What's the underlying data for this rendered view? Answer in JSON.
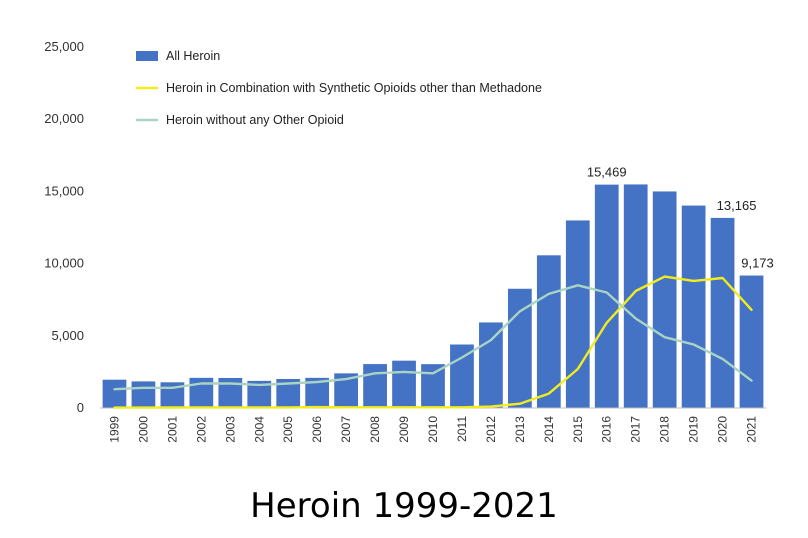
{
  "chart_data": {
    "type": "bar",
    "title": "Heroin 1999-2021",
    "categories": [
      "1999",
      "2000",
      "2001",
      "2002",
      "2003",
      "2004",
      "2005",
      "2006",
      "2007",
      "2008",
      "2009",
      "2010",
      "2011",
      "2012",
      "2013",
      "2014",
      "2015",
      "2016",
      "2017",
      "2018",
      "2019",
      "2020",
      "2021"
    ],
    "ylim": [
      0,
      25000
    ],
    "yticks": [
      "0",
      "5,000",
      "10,000",
      "15,000",
      "20,000",
      "25,000"
    ],
    "ytick_values": [
      0,
      5000,
      10000,
      15000,
      20000,
      25000
    ],
    "grid": false,
    "legend_position": "top-left",
    "series": [
      {
        "name": "All Heroin",
        "type": "bar",
        "color": "#4472C4",
        "values": [
          1960,
          1842,
          1779,
          2089,
          2080,
          1878,
          2009,
          2088,
          2399,
          3041,
          3278,
          3036,
          4397,
          5925,
          8257,
          10574,
          12989,
          15469,
          15482,
          14996,
          14019,
          13165,
          9173
        ]
      },
      {
        "name": "Heroin in Combination with Synthetic Opioids other than Methadone",
        "type": "line",
        "color": "#F2EC1D",
        "values": [
          30,
          30,
          35,
          40,
          40,
          40,
          45,
          60,
          50,
          50,
          50,
          50,
          50,
          100,
          300,
          1000,
          2700,
          5900,
          8100,
          9100,
          8800,
          9000,
          6800
        ]
      },
      {
        "name": "Heroin without any Other Opioid",
        "type": "line",
        "color": "#A9D4C4",
        "values": [
          1300,
          1400,
          1400,
          1700,
          1700,
          1600,
          1700,
          1800,
          2000,
          2400,
          2500,
          2400,
          3500,
          4700,
          6700,
          7900,
          8500,
          8000,
          6200,
          4900,
          4400,
          3400,
          1900
        ]
      }
    ],
    "data_labels": [
      {
        "category": "2016",
        "text": "15,469"
      },
      {
        "category": "2020",
        "text": "13,165"
      },
      {
        "category": "2021",
        "text": "9,173"
      }
    ]
  }
}
